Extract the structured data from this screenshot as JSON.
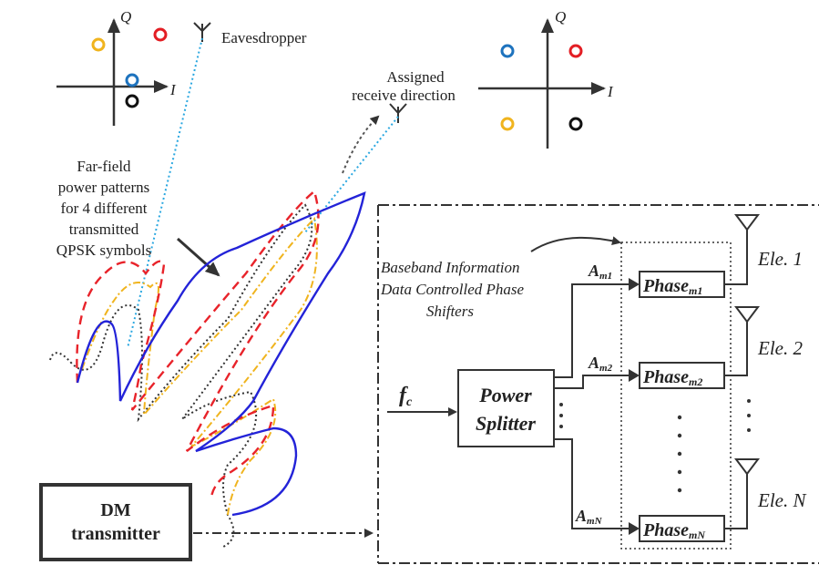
{
  "constellations": {
    "eavesdropper": {
      "q_label": "Q",
      "i_label": "I"
    },
    "assigned": {
      "q_label": "Q",
      "i_label": "I"
    }
  },
  "labels": {
    "eavesdropper": "Eavesdropper",
    "assigned_line1": "Assigned",
    "assigned_line2": "receive direction",
    "farfield_line1": "Far-field",
    "farfield_line2": "power patterns",
    "farfield_line3": "for 4 different",
    "farfield_line4": "transmitted",
    "farfield_line5": "QPSK symbols"
  },
  "transmitter": {
    "line1": "DM",
    "line2": "transmitter"
  },
  "block": {
    "baseband_line1": "Baseband Information",
    "baseband_line2": "Data Controlled Phase",
    "baseband_line3": "Shifters",
    "input_main": "f",
    "input_sub": "c",
    "splitter_line1": "Power",
    "splitter_line2": "Splitter",
    "amp_main": "A",
    "phase_main": "Phase",
    "branches": [
      {
        "amp_sub": "m1",
        "phase_sub": "m1",
        "element": "Ele. 1"
      },
      {
        "amp_sub": "m2",
        "phase_sub": "m2",
        "element": "Ele. 2"
      },
      {
        "amp_sub": "mN",
        "phase_sub": "mN",
        "element": "Ele. N"
      }
    ]
  },
  "colors": {
    "symbol_red": "#e31e24",
    "symbol_blue": "#1e73be",
    "symbol_yellow": "#f0b41e",
    "symbol_black": "#111111",
    "pattern_blue": "#2323d8",
    "pattern_red": "#e8232a",
    "pattern_yellow": "#f0b41e",
    "pattern_black": "#333333",
    "beam_cyan": "#2aa7e0"
  }
}
